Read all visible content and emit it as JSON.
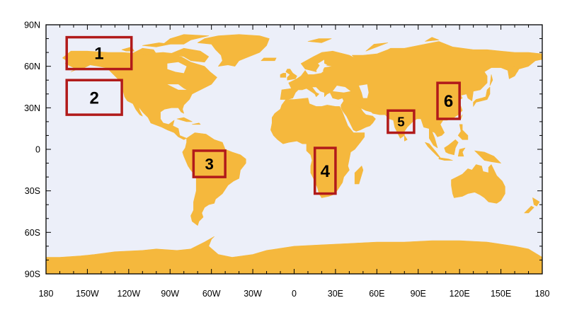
{
  "colors": {
    "ocean": "#eceff9",
    "land": "#f5b83d",
    "frame": "#000000",
    "region_box": "#b11a1a"
  },
  "map": {
    "projection": "equirectangular",
    "lon_range": [
      -180,
      180
    ],
    "lat_range": [
      -90,
      90
    ],
    "lat_labels": [
      {
        "lat": 90,
        "text": "90N"
      },
      {
        "lat": 60,
        "text": "60N"
      },
      {
        "lat": 30,
        "text": "30N"
      },
      {
        "lat": 0,
        "text": "0"
      },
      {
        "lat": -30,
        "text": "30S"
      },
      {
        "lat": -60,
        "text": "60S"
      },
      {
        "lat": -90,
        "text": "90S"
      }
    ],
    "lon_labels": [
      {
        "lon": -180,
        "text": "180"
      },
      {
        "lon": -150,
        "text": "150W"
      },
      {
        "lon": -120,
        "text": "120W"
      },
      {
        "lon": -90,
        "text": "90W"
      },
      {
        "lon": -60,
        "text": "60W"
      },
      {
        "lon": -30,
        "text": "30W"
      },
      {
        "lon": 0,
        "text": "0"
      },
      {
        "lon": 30,
        "text": "30E"
      },
      {
        "lon": 60,
        "text": "60E"
      },
      {
        "lon": 90,
        "text": "90E"
      },
      {
        "lon": 120,
        "text": "120E"
      },
      {
        "lon": 150,
        "text": "150E"
      },
      {
        "lon": 180,
        "text": "180"
      }
    ],
    "regions": [
      {
        "label": "1",
        "lon": [
          -165,
          -118
        ],
        "lat": [
          58,
          81
        ]
      },
      {
        "label": "2",
        "lon": [
          -165,
          -125
        ],
        "lat": [
          25,
          50
        ]
      },
      {
        "label": "3",
        "lon": [
          -73,
          -50
        ],
        "lat": [
          -20,
          -1
        ]
      },
      {
        "label": "4",
        "lon": [
          15,
          30
        ],
        "lat": [
          -32,
          1
        ]
      },
      {
        "label": "5",
        "lon": [
          68,
          87
        ],
        "lat": [
          12,
          28
        ]
      },
      {
        "label": "6",
        "lon": [
          104,
          120
        ],
        "lat": [
          22,
          48
        ]
      }
    ]
  }
}
